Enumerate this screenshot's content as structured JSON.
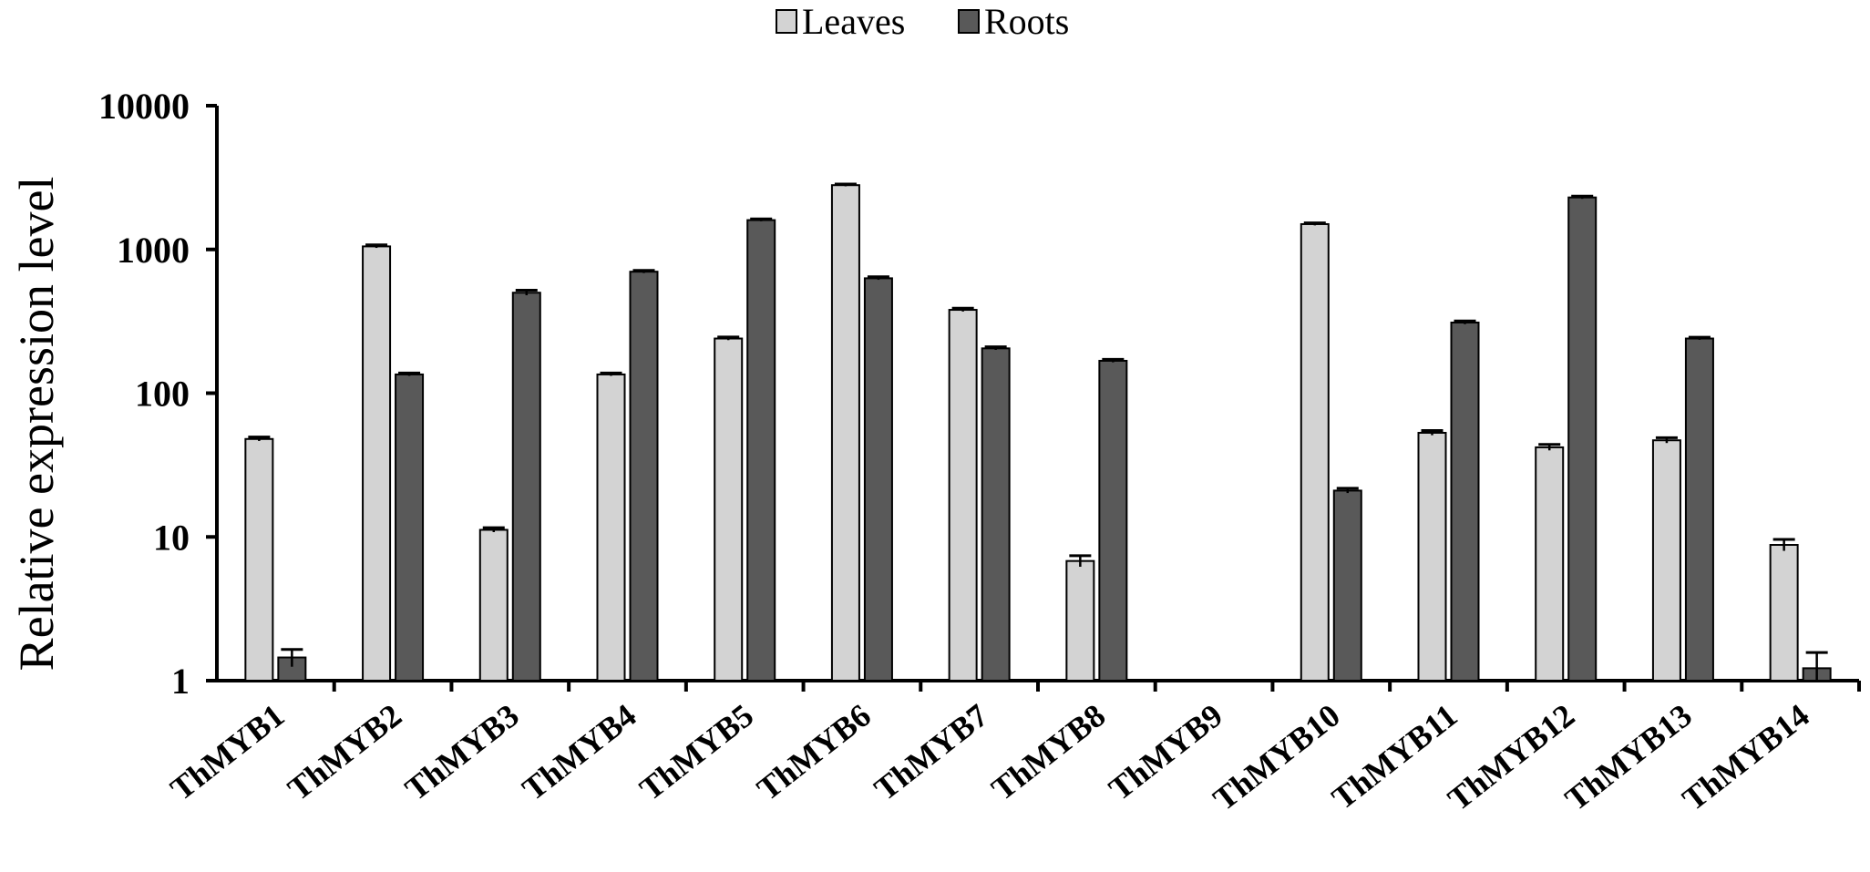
{
  "chart_data": {
    "type": "bar",
    "title": "",
    "xlabel": "",
    "ylabel": "Relative expression level",
    "y_scale": "log",
    "ylim": [
      1,
      10000
    ],
    "y_ticks": [
      "1",
      "10",
      "100",
      "1000",
      "10000"
    ],
    "grid": false,
    "legend_position": "top-center",
    "categories": [
      "ThMYB1",
      "ThMYB2",
      "ThMYB3",
      "ThMYB4",
      "ThMYB5",
      "ThMYB6",
      "ThMYB7",
      "ThMYB8",
      "ThMYB9",
      "ThMYB10",
      "ThMYB11",
      "ThMYB12",
      "ThMYB13",
      "ThMYB14"
    ],
    "series": [
      {
        "name": "Leaves",
        "color": "#d3d3d3",
        "values": [
          48,
          1050,
          11.2,
          135,
          240,
          2800,
          380,
          6.8,
          null,
          1500,
          53,
          42,
          47,
          8.8
        ],
        "errors": [
          1.5,
          25,
          0.4,
          3,
          6,
          50,
          10,
          0.6,
          null,
          30,
          2,
          2,
          2,
          0.8
        ]
      },
      {
        "name": "Roots",
        "color": "#595959",
        "values": [
          1.45,
          135,
          500,
          700,
          1600,
          630,
          205,
          168,
          null,
          21,
          310,
          2300,
          240,
          1.22
        ],
        "errors": [
          0.2,
          3,
          20,
          15,
          30,
          15,
          5,
          4,
          null,
          0.8,
          8,
          50,
          5,
          0.35
        ]
      }
    ]
  }
}
